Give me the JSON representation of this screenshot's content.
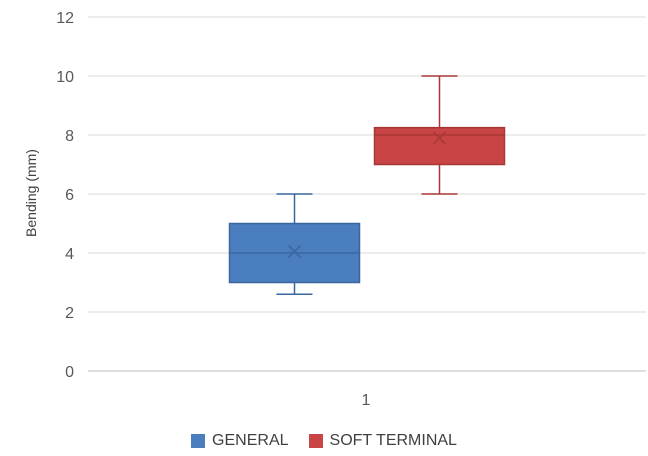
{
  "chart_data": {
    "type": "box",
    "ylabel": "Bending (mm)",
    "xlabel": "",
    "ylim": [
      0,
      12
    ],
    "yticks": [
      0,
      2,
      4,
      6,
      8,
      10,
      12
    ],
    "categories": [
      "1"
    ],
    "grid": true,
    "legend_position": "bottom",
    "series": [
      {
        "name": "GENERAL",
        "color": "#4a7ebf",
        "stroke": "#3a669e",
        "min": 2.6,
        "q1": 3.0,
        "median": 4.0,
        "q3": 5.0,
        "max": 6.0,
        "mean": 4.05
      },
      {
        "name": "SOFT TERMINAL",
        "color": "#c94545",
        "stroke": "#a83636",
        "min": 6.0,
        "q1": 7.0,
        "median": 8.0,
        "q3": 8.25,
        "max": 10.0,
        "mean": 7.9
      }
    ]
  }
}
